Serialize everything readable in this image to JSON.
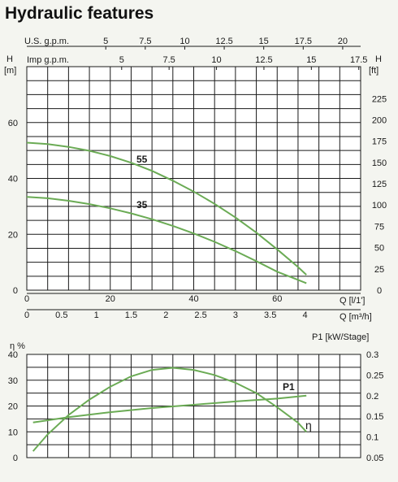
{
  "title": "Hydraulic features",
  "chart_data": [
    {
      "type": "line",
      "name": "head",
      "y_left_label": "H",
      "y_left_unit": "[m]",
      "y_right_label": "H",
      "y_right_unit": "[ft]",
      "ylim": [
        0,
        80
      ],
      "y_ticks_left": [
        0,
        20,
        40,
        60
      ],
      "y_ticks_right": [
        0,
        25,
        50,
        75,
        100,
        125,
        150,
        175,
        200,
        225
      ],
      "x_axes": [
        {
          "label": "U.S. g.p.m.",
          "ticks": [
            5,
            7.5,
            10,
            12.5,
            15,
            17.5,
            20
          ],
          "lpm_per_unit": 3.785
        },
        {
          "label": "Imp g.p.m.",
          "ticks": [
            5,
            7.5,
            10,
            12.5,
            15,
            17.5
          ],
          "lpm_per_unit": 4.546
        },
        {
          "label": "Q [l/1']",
          "ticks": [
            0,
            20,
            40,
            60
          ],
          "lpm_per_unit": 1
        },
        {
          "label": "Q [m³/h]",
          "ticks": [
            0,
            0.5,
            1,
            1.5,
            2,
            2.5,
            3,
            3.5,
            4
          ],
          "lpm_per_unit": 16.667
        }
      ],
      "xlim_lpm": [
        0,
        80
      ],
      "series": [
        {
          "name": "55",
          "x": [
            0,
            5,
            10,
            15,
            20,
            25,
            30,
            35,
            40,
            45,
            50,
            55,
            60,
            65,
            67
          ],
          "y": [
            52.8,
            52.3,
            51.3,
            49.9,
            48.0,
            45.6,
            42.7,
            39.2,
            35.3,
            30.9,
            26.0,
            20.6,
            14.6,
            8.3,
            5.5
          ]
        },
        {
          "name": "35",
          "x": [
            0,
            5,
            10,
            15,
            20,
            25,
            30,
            35,
            40,
            45,
            50,
            55,
            60,
            65,
            67
          ],
          "y": [
            33.4,
            32.9,
            32.0,
            30.8,
            29.3,
            27.5,
            25.4,
            23.0,
            20.3,
            17.3,
            14.0,
            10.4,
            6.6,
            3.7,
            2.5
          ]
        }
      ]
    },
    {
      "type": "line",
      "name": "efficiency-power",
      "y_left_label": "η %",
      "y_right_label": "P1 [kW/Stage]",
      "ylim_left": [
        0,
        40
      ],
      "ylim_right": [
        0.05,
        0.3
      ],
      "y_ticks_left": [
        0,
        10,
        20,
        30,
        40
      ],
      "y_ticks_right": [
        0.05,
        0.1,
        0.15,
        0.2,
        0.25,
        0.3
      ],
      "series": [
        {
          "name": "η",
          "axis": "left",
          "x": [
            1.5,
            5,
            10,
            15,
            20,
            25,
            30,
            35,
            40,
            45,
            50,
            55,
            60,
            65,
            67
          ],
          "y": [
            2.5,
            9,
            16.5,
            22.5,
            27.5,
            31.5,
            34,
            34.8,
            34,
            32,
            29,
            25,
            19.5,
            13.5,
            10
          ]
        },
        {
          "name": "P1",
          "axis": "right",
          "x": [
            1.5,
            10,
            20,
            30,
            40,
            50,
            60,
            67
          ],
          "y": [
            0.135,
            0.148,
            0.16,
            0.17,
            0.178,
            0.186,
            0.193,
            0.2
          ]
        }
      ]
    }
  ]
}
